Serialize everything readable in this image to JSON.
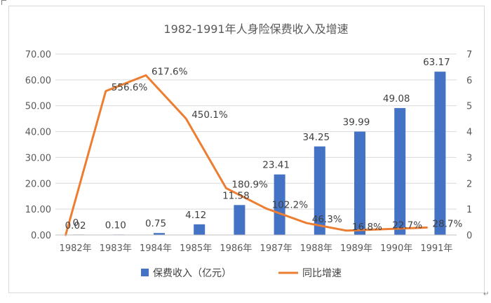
{
  "chart_data": {
    "type": "bar+line",
    "title": "1982-1991年人身险保费收入及增速",
    "categories": [
      "1982年",
      "1983年",
      "1984年",
      "1985年",
      "1986年",
      "1987年",
      "1988年",
      "1989年",
      "1990年",
      "1991年"
    ],
    "series": [
      {
        "name": "保费收入（亿元）",
        "type": "bar",
        "axis": "left",
        "color": "#4472c4",
        "values": [
          0.02,
          0.1,
          0.75,
          4.12,
          11.58,
          23.41,
          34.25,
          39.99,
          49.08,
          63.17
        ],
        "labels": [
          "0.02",
          "0.10",
          "0.75",
          "4.12",
          "11.58",
          "23.41",
          "34.25",
          "39.99",
          "49.08",
          "63.17"
        ]
      },
      {
        "name": "同比增速",
        "type": "line",
        "axis": "right",
        "color": "#ed7d31",
        "values": [
          0,
          5.566,
          6.176,
          4.501,
          1.809,
          1.022,
          0.463,
          0.168,
          0.227,
          0.287
        ],
        "labels": [
          "0",
          "556.6%",
          "617.6%",
          "450.1%",
          "180.9%",
          "102.2%",
          "46.3%",
          "16.8%",
          "22.7%",
          "28.7%"
        ]
      }
    ],
    "y_left": {
      "min": 0,
      "max": 70,
      "step": 10,
      "tick_labels": [
        "0.00",
        "10.00",
        "20.00",
        "30.00",
        "40.00",
        "50.00",
        "60.00",
        "70.00"
      ]
    },
    "y_right": {
      "min": 0,
      "max": 7,
      "step": 1,
      "tick_labels": [
        "0",
        "1",
        "2",
        "3",
        "4",
        "5",
        "6",
        "7"
      ]
    },
    "grid": true,
    "legend_position": "bottom"
  }
}
